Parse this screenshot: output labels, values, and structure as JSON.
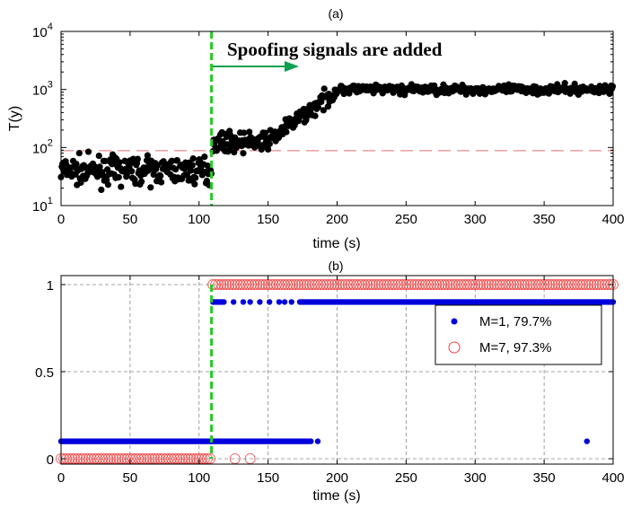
{
  "chart_data": [
    {
      "panel": "(a)",
      "type": "scatter",
      "title": "(a)",
      "xlabel": "time (s)",
      "ylabel": "T(y)",
      "yscale": "log",
      "xlim": [
        0,
        400
      ],
      "ylim": [
        10,
        10000
      ],
      "xticks": [
        "0",
        "50",
        "100",
        "150",
        "200",
        "250",
        "300",
        "350",
        "400"
      ],
      "yticks": [
        {
          "base": "10",
          "exp": "1"
        },
        {
          "base": "10",
          "exp": "2"
        },
        {
          "base": "10",
          "exp": "3"
        },
        {
          "base": "10",
          "exp": "4"
        }
      ],
      "grid": false,
      "marker_color": "#000000",
      "threshold": {
        "y": 88,
        "color": "#e07070",
        "style": "dashed"
      },
      "event_line": {
        "x": 109,
        "color": "#22cc22",
        "style": "dashed"
      },
      "annotation": {
        "text": "Spoofing signals are added",
        "arrow_color": "#0da050"
      },
      "segments": [
        {
          "x_start": 0,
          "x_end": 109,
          "y_mean": 40,
          "spread": 0.35
        },
        {
          "x_start": 110,
          "x_end": 150,
          "y_mean": 125,
          "spread": 0.25
        },
        {
          "x_start": 150,
          "x_end": 200,
          "y_from": 130,
          "y_to": 950,
          "spread": 0.22
        },
        {
          "x_start": 200,
          "x_end": 400,
          "y_mean": 1000,
          "spread": 0.12
        }
      ]
    },
    {
      "panel": "(b)",
      "type": "scatter",
      "title": "(b)",
      "xlabel": "time (s)",
      "ylabel": "",
      "xlim": [
        0,
        400
      ],
      "ylim": [
        0,
        1
      ],
      "xticks": [
        "0",
        "50",
        "100",
        "150",
        "200",
        "250",
        "300",
        "350",
        "400"
      ],
      "yticks": [
        "0",
        "0.5",
        "1"
      ],
      "grid": true,
      "event_line": {
        "x": 109,
        "color": "#22cc22",
        "style": "dashed"
      },
      "legend_position": "right",
      "series": [
        {
          "name": "M=1, 79.7%",
          "marker": "filled-dot",
          "color": "#0000dd",
          "low_value": 0.1,
          "high_value": 0.9,
          "low_ranges": [
            [
              0,
              181
            ],
            [
              186,
              186
            ],
            [
              381,
              381
            ]
          ],
          "high_ranges": [
            [
              110,
              118
            ],
            [
              125,
              125
            ],
            [
              132,
              132
            ],
            [
              137,
              137
            ],
            [
              144,
              144
            ],
            [
              151,
              151
            ],
            [
              158,
              158
            ],
            [
              162,
              162
            ],
            [
              167,
              167
            ],
            [
              173,
              400
            ]
          ]
        },
        {
          "name": "M=7, 97.3%",
          "marker": "open-circle",
          "color": "#ee4444",
          "low_value": 0.0,
          "high_value": 1.0,
          "low_ranges": [
            [
              0,
              109
            ],
            [
              126,
              127
            ],
            [
              137,
              138
            ]
          ],
          "high_ranges": [
            [
              110,
              400
            ]
          ]
        }
      ]
    }
  ]
}
